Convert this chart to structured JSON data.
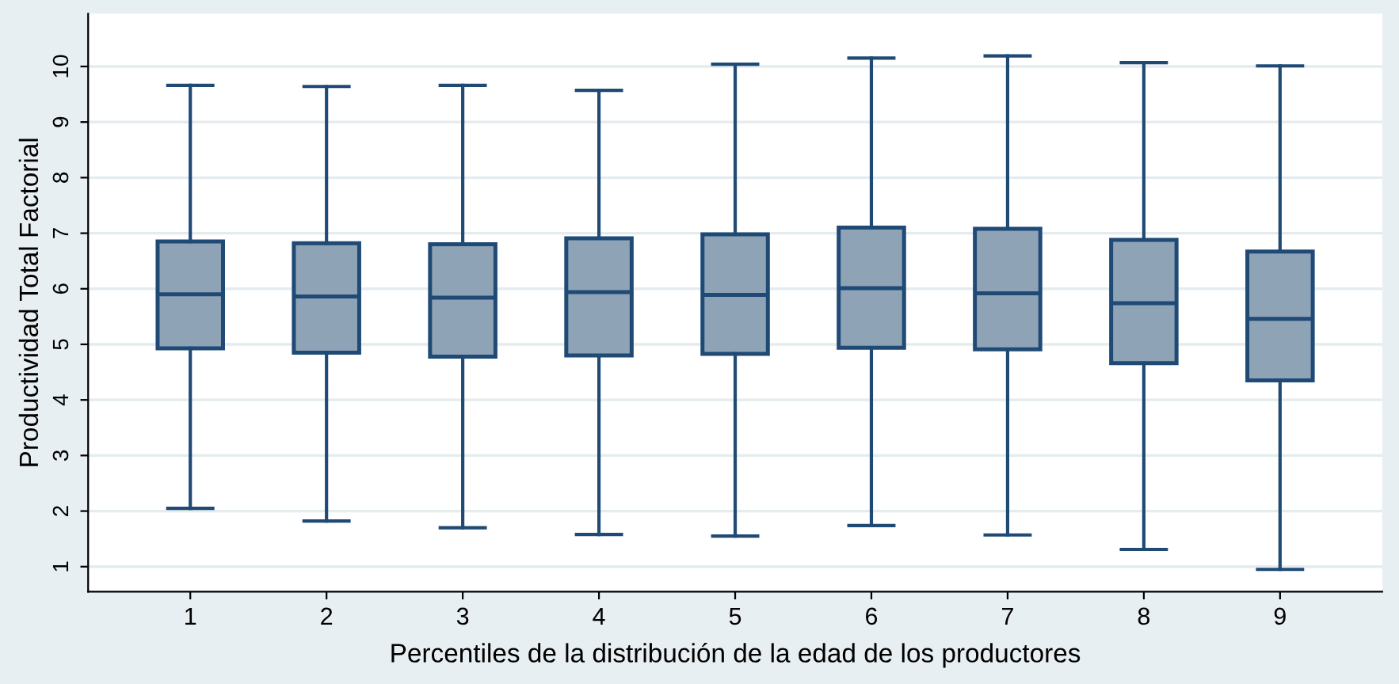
{
  "chart_data": {
    "type": "box",
    "xlabel": "Percentiles de la distribución de la edad de los productores",
    "ylabel": "Productividad Total Factorial",
    "categories": [
      "1",
      "2",
      "3",
      "4",
      "5",
      "6",
      "7",
      "8",
      "9"
    ],
    "boxes": [
      {
        "low": 2.05,
        "q1": 4.93,
        "median": 5.9,
        "q3": 6.85,
        "high": 9.66
      },
      {
        "low": 1.82,
        "q1": 4.85,
        "median": 5.86,
        "q3": 6.82,
        "high": 9.64
      },
      {
        "low": 1.7,
        "q1": 4.78,
        "median": 5.84,
        "q3": 6.8,
        "high": 9.66
      },
      {
        "low": 1.58,
        "q1": 4.8,
        "median": 5.94,
        "q3": 6.91,
        "high": 9.57
      },
      {
        "low": 1.55,
        "q1": 4.83,
        "median": 5.89,
        "q3": 6.98,
        "high": 10.04
      },
      {
        "low": 1.74,
        "q1": 4.94,
        "median": 6.01,
        "q3": 7.1,
        "high": 10.15
      },
      {
        "low": 1.57,
        "q1": 4.91,
        "median": 5.92,
        "q3": 7.08,
        "high": 10.19
      },
      {
        "low": 1.31,
        "q1": 4.66,
        "median": 5.74,
        "q3": 6.88,
        "high": 10.07
      },
      {
        "low": 0.95,
        "q1": 4.35,
        "median": 5.46,
        "q3": 6.67,
        "high": 10.01
      }
    ],
    "color": "#8ea3b6",
    "ylim": [
      0.55,
      10.95
    ],
    "yticks": [
      1,
      2,
      3,
      4,
      5,
      6,
      7,
      8,
      9,
      10
    ],
    "grid": "y"
  }
}
